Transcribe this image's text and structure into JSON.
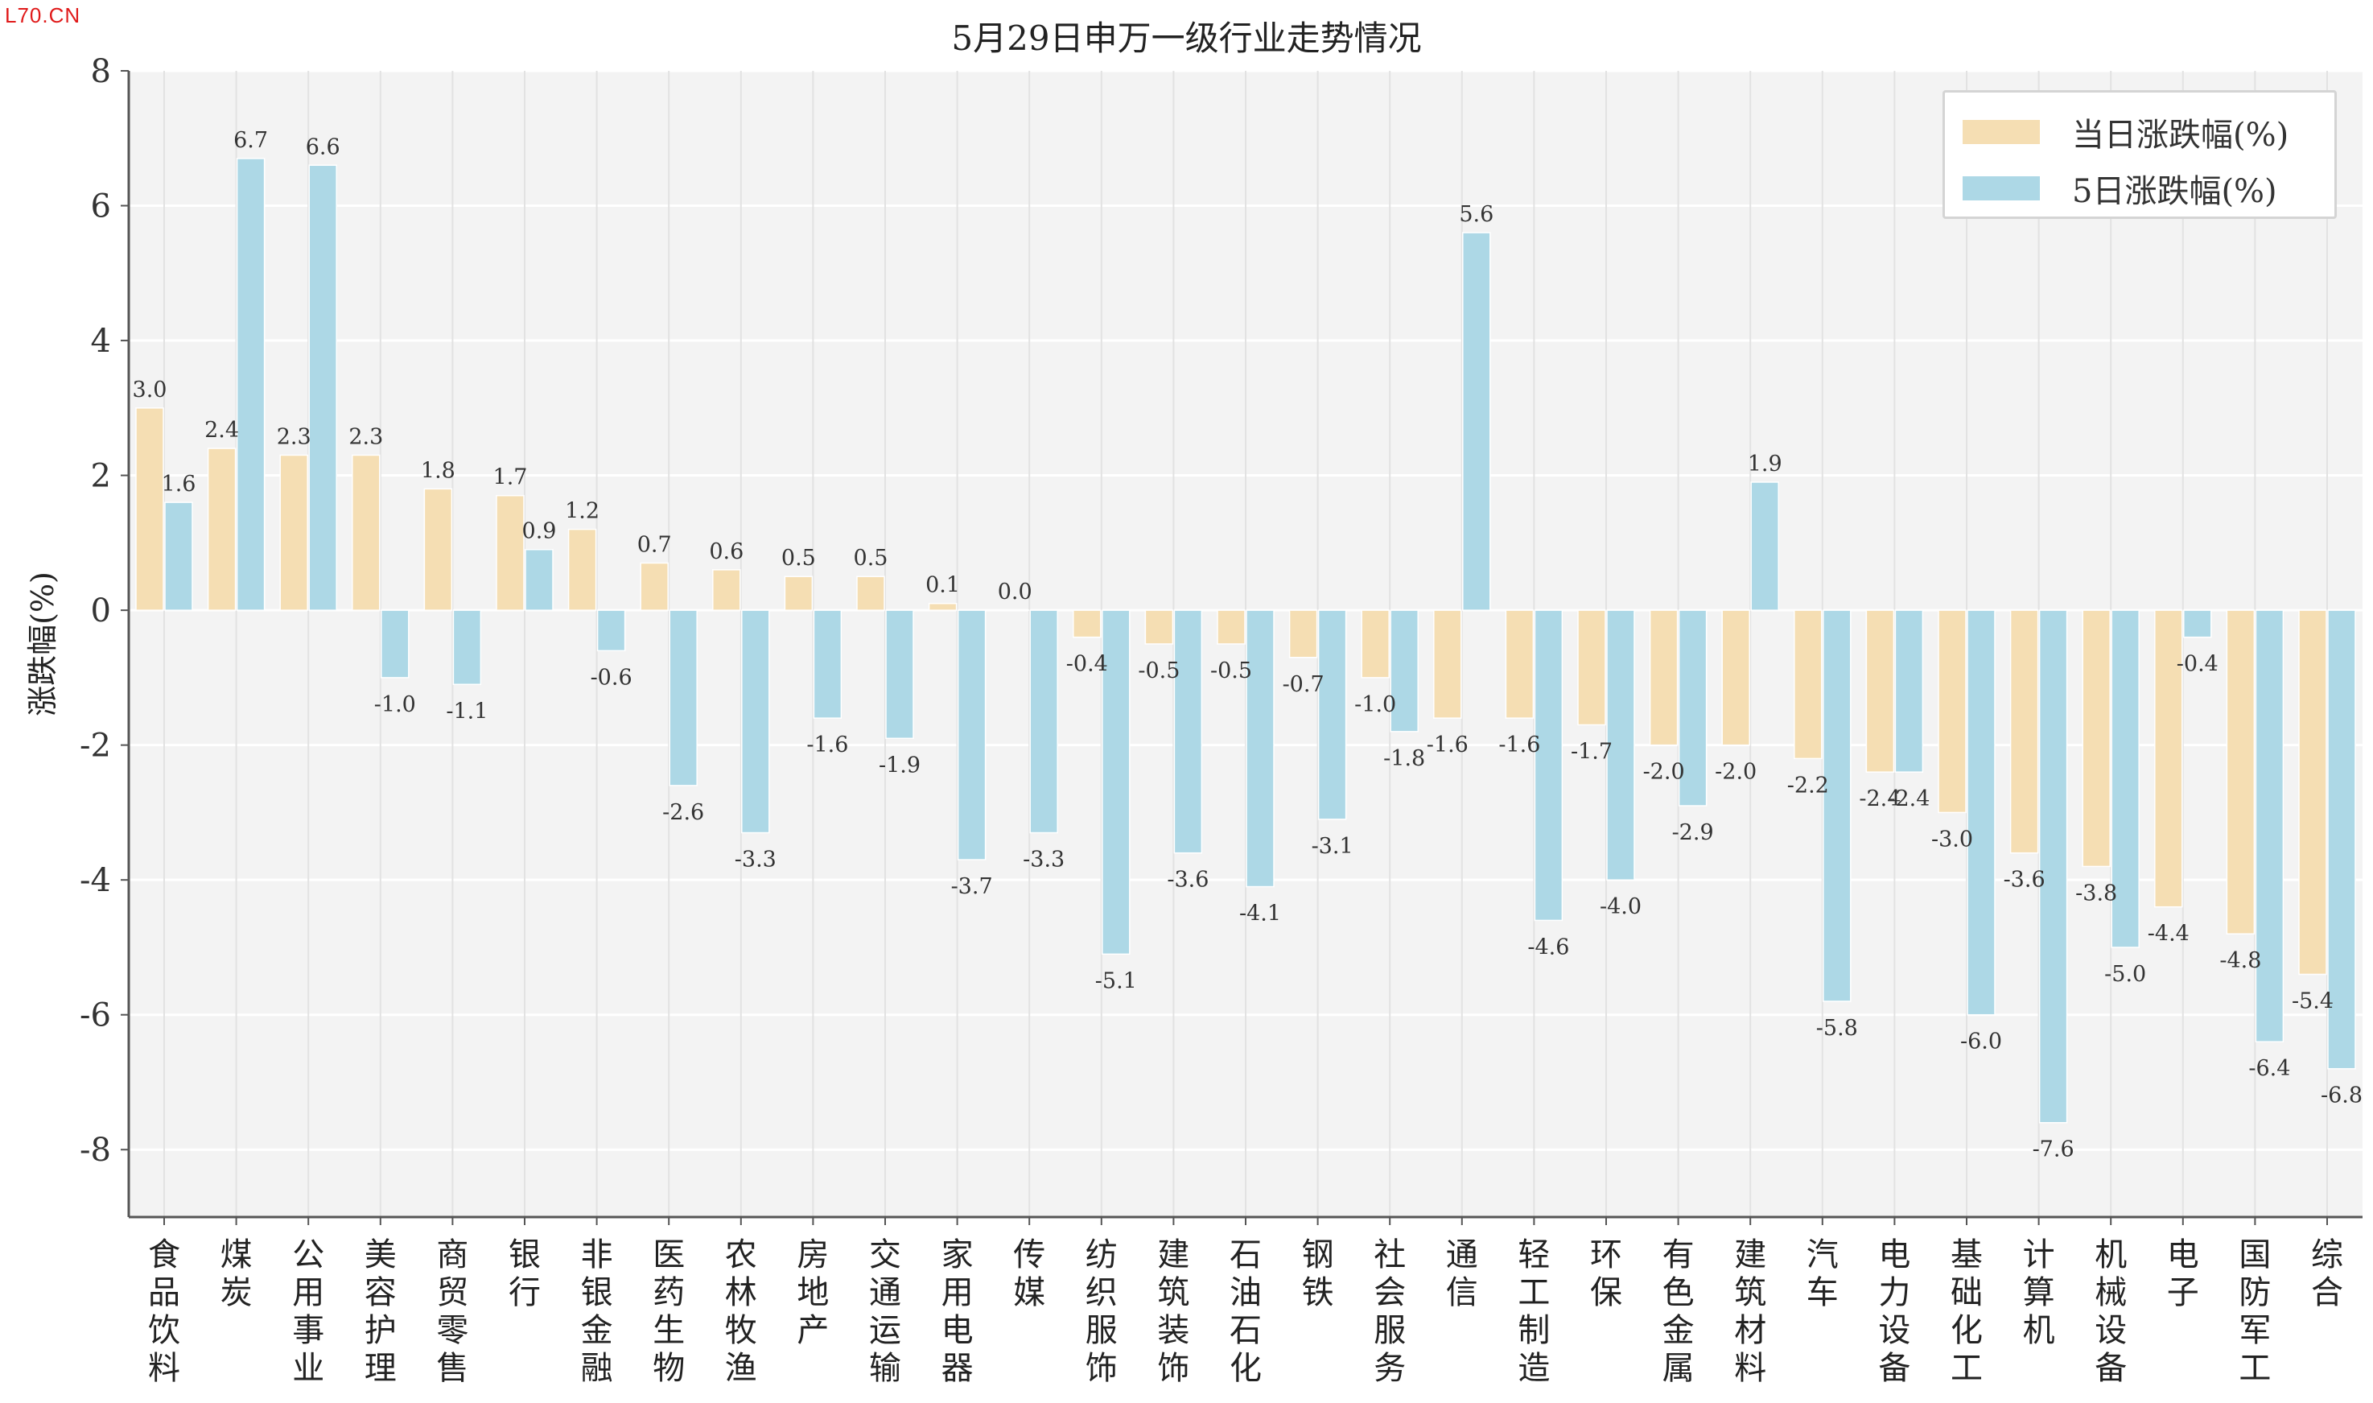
{
  "watermark": "L70.CN",
  "chart_data": {
    "type": "bar",
    "title": "5月29日申万一级行业走势情况",
    "ylabel": "涨跌幅(%)",
    "xlabel": "",
    "ylim": [
      -9,
      8
    ],
    "yticks": [
      8,
      6,
      4,
      2,
      0,
      -2,
      -4,
      -6,
      -8
    ],
    "grid": true,
    "legend_position": "top-right",
    "categories": [
      "食品饮料",
      "煤炭",
      "公用事业",
      "美容护理",
      "商贸零售",
      "银行",
      "非银金融",
      "医药生物",
      "农林牧渔",
      "房地产",
      "交通运输",
      "家用电器",
      "传媒",
      "纺织服饰",
      "建筑装饰",
      "石油石化",
      "钢铁",
      "社会服务",
      "通信",
      "轻工制造",
      "环保",
      "有色金属",
      "建筑材料",
      "汽车",
      "电力设备",
      "基础化工",
      "计算机",
      "机械设备",
      "电子",
      "国防军工",
      "综合"
    ],
    "series": [
      {
        "name": "当日涨跌幅(%)",
        "color": "#f5deb3",
        "values": [
          3.0,
          2.4,
          2.3,
          2.3,
          1.8,
          1.7,
          1.2,
          0.7,
          0.6,
          0.5,
          0.5,
          0.1,
          0.0,
          -0.4,
          -0.5,
          -0.5,
          -0.7,
          -1.0,
          -1.6,
          -1.6,
          -1.7,
          -2.0,
          -2.0,
          -2.2,
          -2.4,
          -3.0,
          -3.6,
          -3.8,
          -4.4,
          -4.8,
          -5.4
        ]
      },
      {
        "name": "5日涨跌幅(%)",
        "color": "#add8e6",
        "values": [
          1.6,
          6.7,
          6.6,
          -1.0,
          -1.1,
          0.9,
          -0.6,
          -2.6,
          -3.3,
          -1.6,
          -1.9,
          -3.7,
          -3.3,
          -5.1,
          -3.6,
          -4.1,
          -3.1,
          -1.8,
          5.6,
          -4.6,
          -4.0,
          -2.9,
          1.9,
          -5.8,
          -2.4,
          -6.0,
          -7.6,
          -5.0,
          -0.4,
          -6.4,
          -6.8
        ]
      }
    ]
  }
}
